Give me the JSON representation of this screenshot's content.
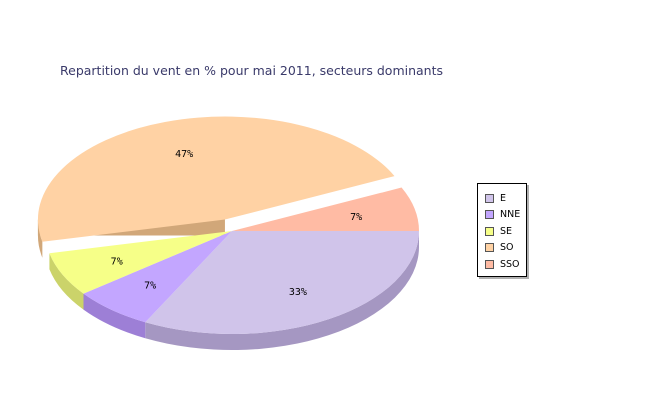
{
  "chart_data": {
    "type": "pie",
    "title": "Repartition du vent en % pour mai 2011, secteurs dominants",
    "categories": [
      "E",
      "NNE",
      "SE",
      "SO",
      "SSO"
    ],
    "values": [
      33,
      7,
      7,
      47,
      7
    ],
    "labels": [
      "33%",
      "7%",
      "7%",
      "47%",
      "7%"
    ],
    "colors": [
      "#d0c4ea",
      "#c3a6ff",
      "#f6ff88",
      "#ffd2a4",
      "#ffbba4"
    ],
    "side_colors": [
      "#a597c2",
      "#9d7fd6",
      "#cbd36a",
      "#d1a779",
      "#d6977f"
    ],
    "exploded": [
      "SO"
    ],
    "legend_position": "right",
    "style": "3d"
  }
}
